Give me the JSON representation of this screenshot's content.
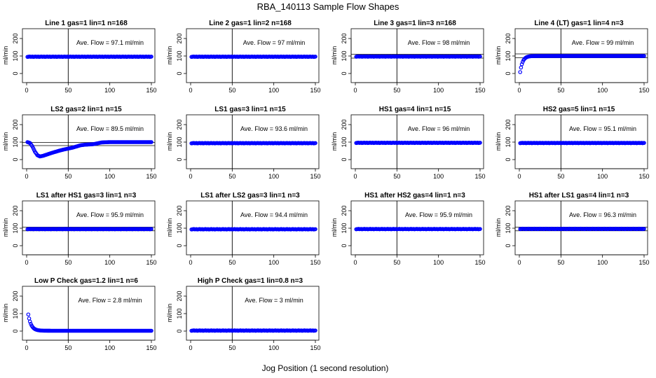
{
  "figure": {
    "title": "RBA_140113  Sample Flow Shapes",
    "xlabel": "Jog Position (1 second resolution)"
  },
  "chart_data": [
    {
      "type": "scatter",
      "title": "Line 1 gas=1 lin=1 n=168",
      "ylabel": "ml/min",
      "avg_prefix": "Ave. Flow = ",
      "avg_value": "97.1",
      "avg_unit": "ml/min",
      "xlim": [
        0,
        150
      ],
      "ylim": [
        0,
        200
      ],
      "x_ticks": [
        0,
        50,
        100,
        150
      ],
      "y_ticks": [
        0,
        100,
        200
      ],
      "vline": 50,
      "hlines": [],
      "series": {
        "shape": "flat",
        "level": 96,
        "x_start": 1,
        "x_end": 150
      },
      "color": "#0000ff"
    },
    {
      "type": "scatter",
      "title": "Line 2 gas=1 lin=2 n=168",
      "ylabel": "ml/min",
      "avg_prefix": "Ave. Flow = ",
      "avg_value": "97",
      "avg_unit": "ml/min",
      "xlim": [
        0,
        150
      ],
      "ylim": [
        0,
        200
      ],
      "x_ticks": [
        0,
        50,
        100,
        150
      ],
      "y_ticks": [
        0,
        100,
        200
      ],
      "vline": 50,
      "hlines": [],
      "series": {
        "shape": "flat",
        "level": 96,
        "x_start": 1,
        "x_end": 150
      },
      "color": "#0000ff"
    },
    {
      "type": "scatter",
      "title": "Line 3 gas=1 lin=3 n=168",
      "ylabel": "ml/min",
      "avg_prefix": "Ave. Flow = ",
      "avg_value": "98",
      "avg_unit": "ml/min",
      "xlim": [
        0,
        150
      ],
      "ylim": [
        0,
        200
      ],
      "x_ticks": [
        0,
        50,
        100,
        150
      ],
      "y_ticks": [
        0,
        100,
        200
      ],
      "vline": 50,
      "hlines": [
        88,
        110
      ],
      "series": {
        "shape": "flat",
        "level": 97,
        "x_start": 1,
        "x_end": 150
      },
      "color": "#0000ff"
    },
    {
      "type": "scatter",
      "title": "Line 4 (LT) gas=1 lin=4 n=3",
      "ylabel": "ml/min",
      "avg_prefix": "Ave. Flow = ",
      "avg_value": "99",
      "avg_unit": "ml/min",
      "xlim": [
        0,
        150
      ],
      "ylim": [
        0,
        200
      ],
      "x_ticks": [
        0,
        50,
        100,
        150
      ],
      "y_ticks": [
        0,
        100,
        200
      ],
      "vline": 50,
      "hlines": [
        90,
        112
      ],
      "series": {
        "shape": "rise",
        "level": 100,
        "start": 8,
        "tau": 3,
        "x_start": 1,
        "x_end": 150
      },
      "color": "#0000ff"
    },
    {
      "type": "scatter",
      "title": "LS2 gas=2 lin=1 n=15",
      "ylabel": "ml/min",
      "avg_prefix": "Ave. Flow = ",
      "avg_value": "89.5",
      "avg_unit": "ml/min",
      "xlim": [
        0,
        150
      ],
      "ylim": [
        0,
        200
      ],
      "x_ticks": [
        0,
        50,
        100,
        150
      ],
      "y_ticks": [
        0,
        100,
        200
      ],
      "vline": 50,
      "hlines": [
        80,
        98
      ],
      "series": {
        "shape": "dip",
        "points": [
          [
            1,
            100
          ],
          [
            4,
            95
          ],
          [
            7,
            75
          ],
          [
            10,
            45
          ],
          [
            13,
            25
          ],
          [
            16,
            18
          ],
          [
            20,
            22
          ],
          [
            25,
            30
          ],
          [
            30,
            38
          ],
          [
            35,
            45
          ],
          [
            40,
            52
          ],
          [
            45,
            58
          ],
          [
            50,
            63
          ],
          [
            55,
            68
          ],
          [
            60,
            75
          ],
          [
            65,
            82
          ],
          [
            70,
            85
          ],
          [
            80,
            88
          ],
          [
            90,
            98
          ],
          [
            100,
            100
          ],
          [
            150,
            100
          ]
        ],
        "x_start": 1,
        "x_end": 150
      },
      "color": "#0000ff"
    },
    {
      "type": "scatter",
      "title": "LS1 gas=3 lin=1 n=15",
      "ylabel": "ml/min",
      "avg_prefix": "Ave. Flow = ",
      "avg_value": "93.6",
      "avg_unit": "ml/min",
      "xlim": [
        0,
        150
      ],
      "ylim": [
        0,
        200
      ],
      "x_ticks": [
        0,
        50,
        100,
        150
      ],
      "y_ticks": [
        0,
        100,
        200
      ],
      "vline": 50,
      "hlines": [],
      "series": {
        "shape": "flat",
        "level": 94,
        "x_start": 1,
        "x_end": 150
      },
      "color": "#0000ff"
    },
    {
      "type": "scatter",
      "title": "HS1 gas=4 lin=1 n=15",
      "ylabel": "ml/min",
      "avg_prefix": "Ave. Flow = ",
      "avg_value": "96",
      "avg_unit": "ml/min",
      "xlim": [
        0,
        150
      ],
      "ylim": [
        0,
        200
      ],
      "x_ticks": [
        0,
        50,
        100,
        150
      ],
      "y_ticks": [
        0,
        100,
        200
      ],
      "vline": 50,
      "hlines": [],
      "series": {
        "shape": "flat",
        "level": 96,
        "x_start": 1,
        "x_end": 150
      },
      "color": "#0000ff"
    },
    {
      "type": "scatter",
      "title": "HS2 gas=5 lin=1 n=15",
      "ylabel": "ml/min",
      "avg_prefix": "Ave. Flow = ",
      "avg_value": "95.1",
      "avg_unit": "ml/min",
      "xlim": [
        0,
        150
      ],
      "ylim": [
        0,
        200
      ],
      "x_ticks": [
        0,
        50,
        100,
        150
      ],
      "y_ticks": [
        0,
        100,
        200
      ],
      "vline": 50,
      "hlines": [],
      "series": {
        "shape": "flat",
        "level": 95,
        "x_start": 1,
        "x_end": 150
      },
      "color": "#0000ff"
    },
    {
      "type": "scatter",
      "title": "LS1 after HS1 gas=3 lin=1 n=3",
      "ylabel": "ml/min",
      "avg_prefix": "Ave. Flow = ",
      "avg_value": "95.9",
      "avg_unit": "ml/min",
      "xlim": [
        0,
        150
      ],
      "ylim": [
        0,
        200
      ],
      "x_ticks": [
        0,
        50,
        100,
        150
      ],
      "y_ticks": [
        0,
        100,
        200
      ],
      "vline": 50,
      "hlines": [
        85,
        106
      ],
      "series": {
        "shape": "flat",
        "level": 95,
        "x_start": 1,
        "x_end": 150
      },
      "color": "#0000ff"
    },
    {
      "type": "scatter",
      "title": "LS1 after LS2 gas=3 lin=1 n=3",
      "ylabel": "ml/min",
      "avg_prefix": "Ave. Flow = ",
      "avg_value": "94.4",
      "avg_unit": "ml/min",
      "xlim": [
        0,
        150
      ],
      "ylim": [
        0,
        200
      ],
      "x_ticks": [
        0,
        50,
        100,
        150
      ],
      "y_ticks": [
        0,
        100,
        200
      ],
      "vline": 50,
      "hlines": [],
      "series": {
        "shape": "flat",
        "level": 94,
        "x_start": 1,
        "x_end": 150
      },
      "color": "#0000ff"
    },
    {
      "type": "scatter",
      "title": "HS1 after HS2 gas=4 lin=1 n=3",
      "ylabel": "ml/min",
      "avg_prefix": "Ave. Flow = ",
      "avg_value": "95.9",
      "avg_unit": "ml/min",
      "xlim": [
        0,
        150
      ],
      "ylim": [
        0,
        200
      ],
      "x_ticks": [
        0,
        50,
        100,
        150
      ],
      "y_ticks": [
        0,
        100,
        200
      ],
      "vline": 50,
      "hlines": [],
      "series": {
        "shape": "flat",
        "level": 95,
        "x_start": 1,
        "x_end": 150
      },
      "color": "#0000ff"
    },
    {
      "type": "scatter",
      "title": "HS1 after LS1 gas=4 lin=1 n=3",
      "ylabel": "ml/min",
      "avg_prefix": "Ave. Flow = ",
      "avg_value": "96.3",
      "avg_unit": "ml/min",
      "xlim": [
        0,
        150
      ],
      "ylim": [
        0,
        200
      ],
      "x_ticks": [
        0,
        50,
        100,
        150
      ],
      "y_ticks": [
        0,
        100,
        200
      ],
      "vline": 50,
      "hlines": [
        85,
        106
      ],
      "series": {
        "shape": "flat",
        "level": 96,
        "x_start": 1,
        "x_end": 150
      },
      "color": "#0000ff"
    },
    {
      "type": "scatter",
      "title": "Low P Check gas=1.2 lin=1 n=6",
      "ylabel": "ml/min",
      "avg_prefix": "Ave. Flow = ",
      "avg_value": "2.8",
      "avg_unit": "ml/min",
      "xlim": [
        0,
        150
      ],
      "ylim": [
        0,
        200
      ],
      "x_ticks": [
        0,
        50,
        100,
        150
      ],
      "y_ticks": [
        0,
        100,
        200
      ],
      "vline": 50,
      "hlines": [],
      "series": {
        "shape": "decay",
        "level": 2,
        "start": 95,
        "tau": 3.5,
        "x_start": 2,
        "x_end": 150
      },
      "color": "#0000ff"
    },
    {
      "type": "scatter",
      "title": "High P Check gas=1 lin=0.8 n=3",
      "ylabel": "ml/min",
      "avg_prefix": "Ave. Flow = ",
      "avg_value": "3",
      "avg_unit": "ml/min",
      "xlim": [
        0,
        150
      ],
      "ylim": [
        0,
        200
      ],
      "x_ticks": [
        0,
        50,
        100,
        150
      ],
      "y_ticks": [
        0,
        100,
        200
      ],
      "vline": 50,
      "hlines": [],
      "series": {
        "shape": "flat",
        "level": 3,
        "x_start": 1,
        "x_end": 150
      },
      "color": "#0000ff"
    }
  ]
}
